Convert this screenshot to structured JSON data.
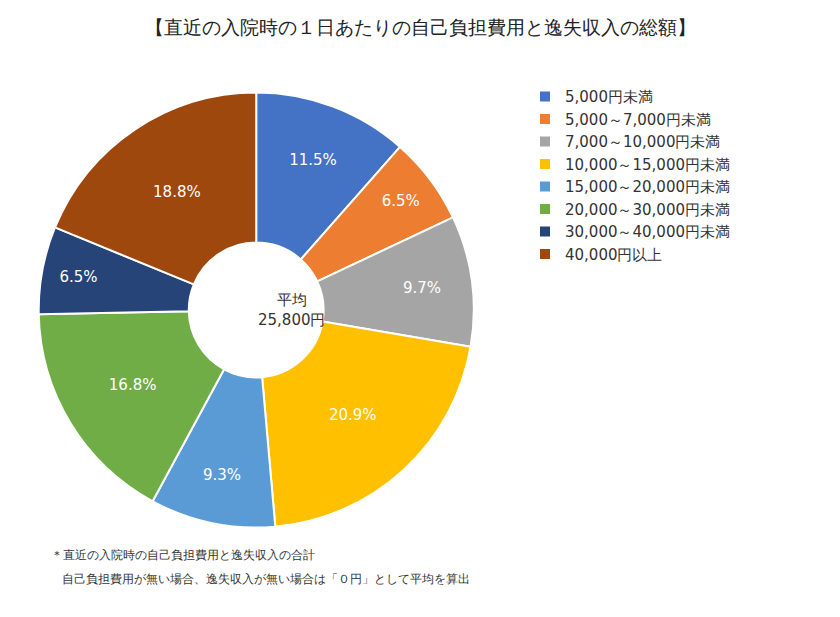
{
  "chart_data": {
    "type": "pie",
    "title": "【直近の入院時の１日あたりの自己負担費用と逸失収入の総額】",
    "categories": [
      "5,000円未満",
      "5,000～7,000円未満",
      "7,000～10,000円未満",
      "10,000～15,000円未満",
      "15,000～20,000円未満",
      "20,000～30,000円未満",
      "30,000～40,000円未満",
      "40,000円以上"
    ],
    "values": [
      11.5,
      6.5,
      9.7,
      20.9,
      9.3,
      16.8,
      6.5,
      18.8
    ],
    "value_labels": [
      "11.5%",
      "6.5%",
      "9.7%",
      "20.9%",
      "9.3%",
      "16.8%",
      "6.5%",
      "18.8%"
    ],
    "colors": [
      "#4472c4",
      "#ed7d31",
      "#a5a5a5",
      "#ffc000",
      "#5b9bd5",
      "#70ad47",
      "#264478",
      "#9e480e"
    ],
    "data_labels": true,
    "legend": "right",
    "center_text": [
      "平均",
      "25,800円"
    ],
    "footnote": [
      "＊直近の入院時の自己負担費用と逸失収入の合計",
      "自己負担費用が無い場合、逸失収入が無い場合は「０円」として平均を算出"
    ]
  }
}
